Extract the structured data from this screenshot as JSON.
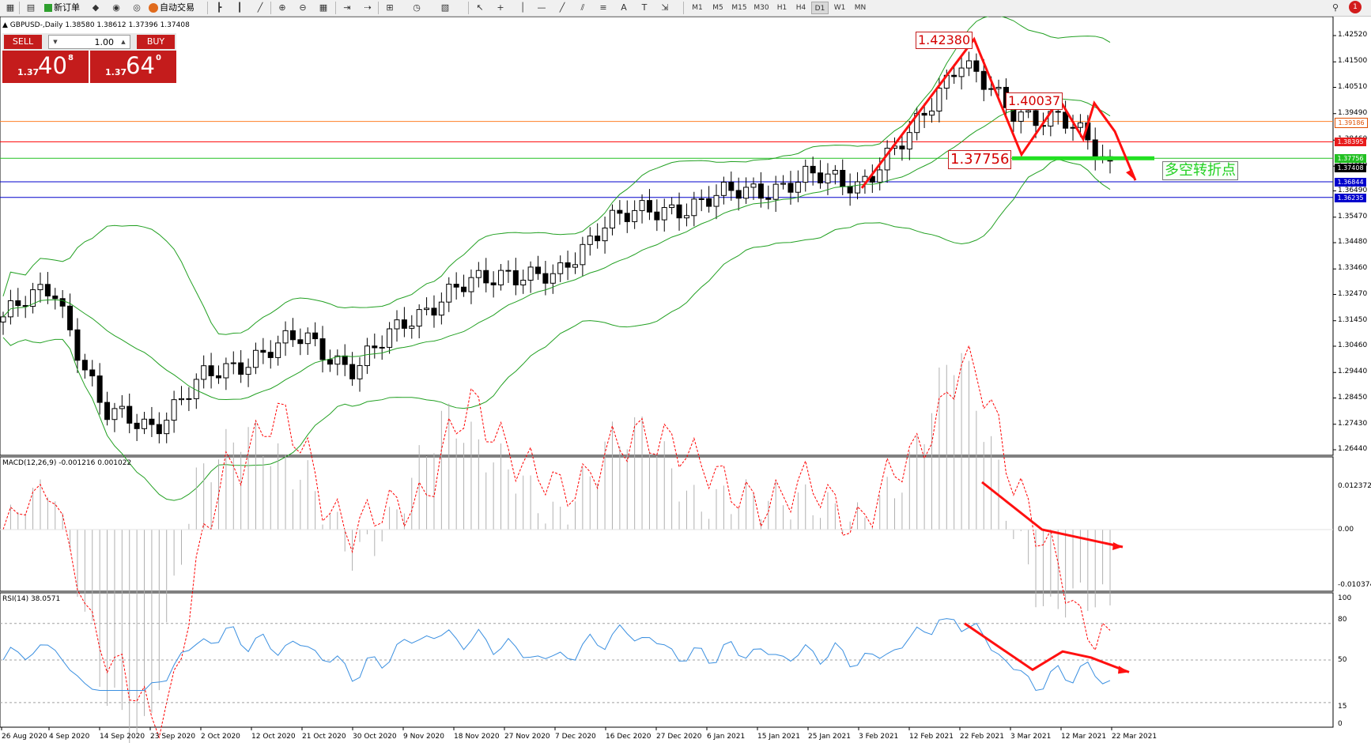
{
  "toolbar": {
    "new_order": "新订单",
    "auto_trading": "自动交易",
    "timeframes": [
      "M1",
      "M5",
      "M15",
      "M30",
      "H1",
      "H4",
      "D1",
      "W1",
      "MN"
    ],
    "notification_count": "1"
  },
  "chart": {
    "symbol_line": "GBPUSD-,Daily  1.38580  1.38612  1.37396  1.37408",
    "trade_panel": {
      "sell_label": "SELL",
      "buy_label": "BUY",
      "lot": "1.00",
      "sell_price_small": "1.37",
      "sell_price_big": "40",
      "sell_price_sup": "8",
      "buy_price_small": "1.37",
      "buy_price_big": "64",
      "buy_price_sup": "0"
    },
    "price_axis": [
      "1.42520",
      "1.41500",
      "1.40510",
      "1.39490",
      "1.38460",
      "1.37450",
      "1.36490",
      "1.35470",
      "1.34480",
      "1.33460",
      "1.32470",
      "1.31450",
      "1.30460",
      "1.29440",
      "1.28450",
      "1.27430",
      "1.26440"
    ],
    "price_axis_values": [
      1.4252,
      1.415,
      1.4051,
      1.3949,
      1.3846,
      1.3745,
      1.3649,
      1.3547,
      1.3448,
      1.3346,
      1.3247,
      1.3145,
      1.3046,
      1.2944,
      1.2845,
      1.2743,
      1.2644
    ],
    "price_tags": [
      {
        "text": "1.39186",
        "value": 1.39186,
        "bg": "#ffffff",
        "fg": "#e05000",
        "line": "#ff7f27"
      },
      {
        "text": "1.38395",
        "value": 1.38395,
        "bg": "#e81c1c",
        "fg": "#ffffff",
        "line": "#ff0000"
      },
      {
        "text": "1.37756",
        "value": 1.37756,
        "bg": "#22c022",
        "fg": "#ffffff",
        "line": "#22c022"
      },
      {
        "text": "1.37408",
        "value": 1.37408,
        "bg": "#000000",
        "fg": "#ffffff",
        "line": "#c0c0c0"
      },
      {
        "text": "1.36844",
        "value": 1.36844,
        "bg": "#0000cc",
        "fg": "#ffffff",
        "line": "#0000cc"
      },
      {
        "text": "1.36235",
        "value": 1.36235,
        "bg": "#0000cc",
        "fg": "#ffffff",
        "line": "#0000cc"
      }
    ],
    "annotations": {
      "high": "1.42380",
      "mid_high": "1.40037",
      "support": "1.37756",
      "turning_point": "多空转折点"
    },
    "colors": {
      "bull": "#ffffff",
      "bear": "#000000",
      "band": "#22a022",
      "arrow": "#ff1010",
      "macd_signal": "#ff0000",
      "rsi": "#3a8fe0"
    }
  },
  "macd": {
    "label": "MACD(12,26,9) -0.001216 0.001022",
    "axis": [
      "0.012372",
      "0.00",
      "-0.010374"
    ]
  },
  "rsi": {
    "label": "RSI(14) 38.0571",
    "axis": [
      "100",
      "80",
      "50",
      "15",
      "0"
    ]
  },
  "dates": [
    "26 Aug 2020",
    "4 Sep 2020",
    "14 Sep 2020",
    "23 Sep 2020",
    "2 Oct 2020",
    "12 Oct 2020",
    "21 Oct 2020",
    "30 Oct 2020",
    "9 Nov 2020",
    "18 Nov 2020",
    "27 Nov 2020",
    "7 Dec 2020",
    "16 Dec 2020",
    "27 Dec 2020",
    "6 Jan 2021",
    "15 Jan 2021",
    "25 Jan 2021",
    "3 Feb 2021",
    "12 Feb 2021",
    "22 Feb 2021",
    "3 Mar 2021",
    "12 Mar 2021",
    "22 Mar 2021"
  ],
  "chart_data": {
    "type": "candlestick",
    "title": "GBPUSD-,Daily",
    "x_range": [
      "26 Aug 2020",
      "26 Mar 2021"
    ],
    "ylim": [
      1.2644,
      1.4252
    ],
    "close_path": [
      [
        "26 Aug 2020",
        1.316
      ],
      [
        "4 Sep 2020",
        1.328
      ],
      [
        "10 Sep 2020",
        1.278
      ],
      [
        "23 Sep 2020",
        1.274
      ],
      [
        "2 Oct 2020",
        1.292
      ],
      [
        "12 Oct 2020",
        1.301
      ],
      [
        "21 Oct 2020",
        1.308
      ],
      [
        "30 Oct 2020",
        1.295
      ],
      [
        "9 Nov 2020",
        1.315
      ],
      [
        "18 Nov 2020",
        1.326
      ],
      [
        "27 Nov 2020",
        1.334
      ],
      [
        "7 Dec 2020",
        1.33
      ],
      [
        "16 Dec 2020",
        1.355
      ],
      [
        "27 Dec 2020",
        1.356
      ],
      [
        "6 Jan 2021",
        1.362
      ],
      [
        "15 Jan 2021",
        1.365
      ],
      [
        "25 Jan 2021",
        1.37
      ],
      [
        "3 Feb 2021",
        1.368
      ],
      [
        "12 Feb 2021",
        1.385
      ],
      [
        "22 Feb 2021",
        1.417
      ],
      [
        "3 Mar 2021",
        1.395
      ],
      [
        "12 Mar 2021",
        1.394
      ],
      [
        "22 Mar 2021",
        1.3741
      ]
    ],
    "key_levels": {
      "high": 1.4238,
      "mid_high": 1.40037,
      "support": 1.37756
    }
  }
}
